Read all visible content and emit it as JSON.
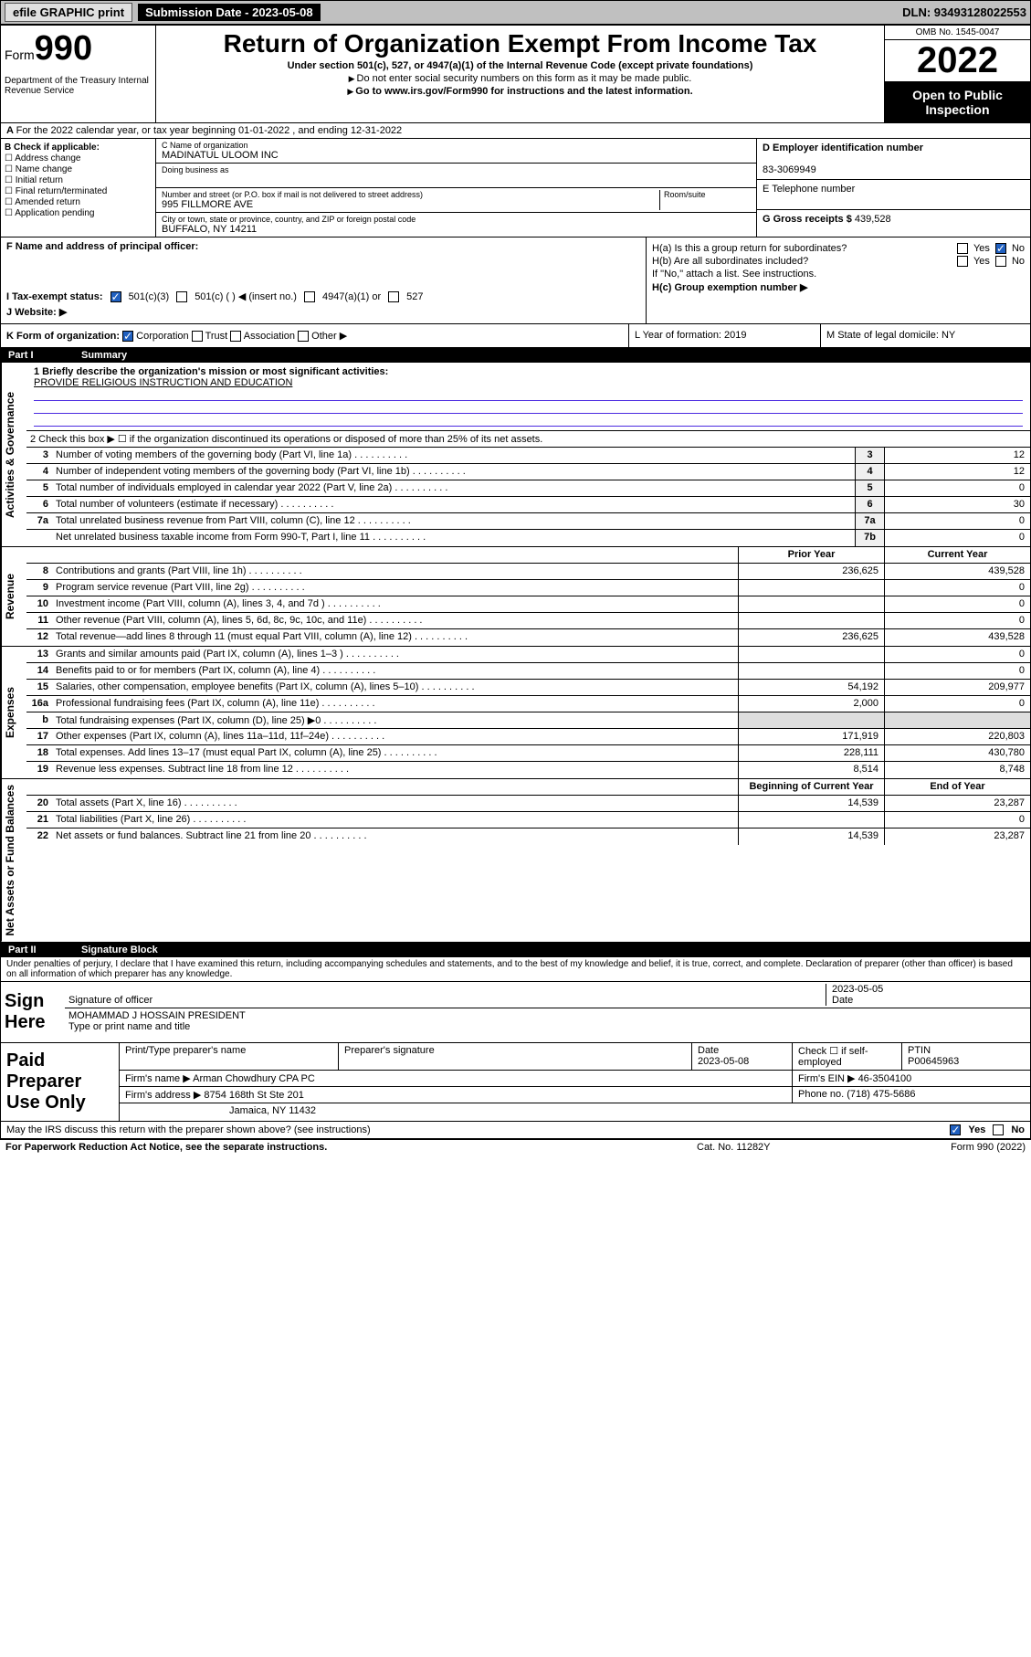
{
  "topbar": {
    "efile": "efile GRAPHIC print",
    "submission_label": "Submission Date - 2023-05-08",
    "dln": "DLN: 93493128022553"
  },
  "header": {
    "form_word": "Form",
    "form_num": "990",
    "dept": "Department of the Treasury\nInternal Revenue Service",
    "title": "Return of Organization Exempt From Income Tax",
    "subtitle1": "Under section 501(c), 527, or 4947(a)(1) of the Internal Revenue Code (except private foundations)",
    "subtitle2": "Do not enter social security numbers on this form as it may be made public.",
    "subtitle3": "Go to www.irs.gov/Form990 for instructions and the latest information.",
    "omb": "OMB No. 1545-0047",
    "year": "2022",
    "inspection": "Open to Public Inspection"
  },
  "row_a": "For the 2022 calendar year, or tax year beginning 01-01-2022   , and ending 12-31-2022",
  "col_b": {
    "title": "B Check if applicable:",
    "opts": [
      "Address change",
      "Name change",
      "Initial return",
      "Final return/terminated",
      "Amended return",
      "Application pending"
    ]
  },
  "c": {
    "name_lbl": "C Name of organization",
    "name": "MADINATUL ULOOM INC",
    "dba_lbl": "Doing business as",
    "addr_lbl": "Number and street (or P.O. box if mail is not delivered to street address)",
    "room_lbl": "Room/suite",
    "addr": "995 FILLMORE AVE",
    "city_lbl": "City or town, state or province, country, and ZIP or foreign postal code",
    "city": "BUFFALO, NY  14211"
  },
  "d": {
    "lbl": "D Employer identification number",
    "val": "83-3069949"
  },
  "e": {
    "lbl": "E Telephone number",
    "val": ""
  },
  "g": {
    "lbl": "G Gross receipts $",
    "val": "439,528"
  },
  "f": {
    "lbl": "F  Name and address of principal officer:",
    "val": ""
  },
  "h": {
    "a": "H(a)  Is this a group return for subordinates?",
    "b": "H(b)  Are all subordinates included?",
    "b_note": "If \"No,\" attach a list. See instructions.",
    "c": "H(c)  Group exemption number ▶",
    "yes": "Yes",
    "no": "No"
  },
  "i": {
    "lbl": "I  Tax-exempt status:",
    "o1": "501(c)(3)",
    "o2": "501(c) (  ) ◀ (insert no.)",
    "o3": "4947(a)(1) or",
    "o4": "527"
  },
  "j": {
    "lbl": "J  Website: ▶",
    "val": ""
  },
  "k": {
    "lbl": "K Form of organization:",
    "o1": "Corporation",
    "o2": "Trust",
    "o3": "Association",
    "o4": "Other ▶"
  },
  "l": {
    "lbl": "L Year of formation: 2019"
  },
  "m": {
    "lbl": "M State of legal domicile: NY"
  },
  "part1": {
    "num": "Part I",
    "title": "Summary"
  },
  "mission": {
    "q": "1  Briefly describe the organization's mission or most significant activities:",
    "text": "PROVIDE RELIGIOUS INSTRUCTION AND EDUCATION"
  },
  "line2": "2  Check this box ▶ ☐  if the organization discontinued its operations or disposed of more than 25% of its net assets.",
  "tabs": {
    "gov": "Activities & Governance",
    "rev": "Revenue",
    "exp": "Expenses",
    "net": "Net Assets or Fund Balances"
  },
  "govlines": [
    {
      "n": "3",
      "t": "Number of voting members of the governing body (Part VI, line 1a)",
      "b": "3",
      "v": "12"
    },
    {
      "n": "4",
      "t": "Number of independent voting members of the governing body (Part VI, line 1b)",
      "b": "4",
      "v": "12"
    },
    {
      "n": "5",
      "t": "Total number of individuals employed in calendar year 2022 (Part V, line 2a)",
      "b": "5",
      "v": "0"
    },
    {
      "n": "6",
      "t": "Total number of volunteers (estimate if necessary)",
      "b": "6",
      "v": "30"
    },
    {
      "n": "7a",
      "t": "Total unrelated business revenue from Part VIII, column (C), line 12",
      "b": "7a",
      "v": "0"
    },
    {
      "n": "",
      "t": "Net unrelated business taxable income from Form 990-T, Part I, line 11",
      "b": "7b",
      "v": "0"
    }
  ],
  "cols": {
    "prior": "Prior Year",
    "current": "Current Year",
    "boy": "Beginning of Current Year",
    "eoy": "End of Year"
  },
  "revlines": [
    {
      "n": "8",
      "t": "Contributions and grants (Part VIII, line 1h)",
      "p": "236,625",
      "c": "439,528"
    },
    {
      "n": "9",
      "t": "Program service revenue (Part VIII, line 2g)",
      "p": "",
      "c": "0"
    },
    {
      "n": "10",
      "t": "Investment income (Part VIII, column (A), lines 3, 4, and 7d )",
      "p": "",
      "c": "0"
    },
    {
      "n": "11",
      "t": "Other revenue (Part VIII, column (A), lines 5, 6d, 8c, 9c, 10c, and 11e)",
      "p": "",
      "c": "0"
    },
    {
      "n": "12",
      "t": "Total revenue—add lines 8 through 11 (must equal Part VIII, column (A), line 12)",
      "p": "236,625",
      "c": "439,528"
    }
  ],
  "explines": [
    {
      "n": "13",
      "t": "Grants and similar amounts paid (Part IX, column (A), lines 1–3 )",
      "p": "",
      "c": "0"
    },
    {
      "n": "14",
      "t": "Benefits paid to or for members (Part IX, column (A), line 4)",
      "p": "",
      "c": "0"
    },
    {
      "n": "15",
      "t": "Salaries, other compensation, employee benefits (Part IX, column (A), lines 5–10)",
      "p": "54,192",
      "c": "209,977"
    },
    {
      "n": "16a",
      "t": "Professional fundraising fees (Part IX, column (A), line 11e)",
      "p": "2,000",
      "c": "0"
    },
    {
      "n": "b",
      "t": "Total fundraising expenses (Part IX, column (D), line 25) ▶0",
      "p": "",
      "c": "",
      "grey": true
    },
    {
      "n": "17",
      "t": "Other expenses (Part IX, column (A), lines 11a–11d, 11f–24e)",
      "p": "171,919",
      "c": "220,803"
    },
    {
      "n": "18",
      "t": "Total expenses. Add lines 13–17 (must equal Part IX, column (A), line 25)",
      "p": "228,111",
      "c": "430,780"
    },
    {
      "n": "19",
      "t": "Revenue less expenses. Subtract line 18 from line 12",
      "p": "8,514",
      "c": "8,748"
    }
  ],
  "netlines": [
    {
      "n": "20",
      "t": "Total assets (Part X, line 16)",
      "p": "14,539",
      "c": "23,287"
    },
    {
      "n": "21",
      "t": "Total liabilities (Part X, line 26)",
      "p": "",
      "c": "0"
    },
    {
      "n": "22",
      "t": "Net assets or fund balances. Subtract line 21 from line 20",
      "p": "14,539",
      "c": "23,287"
    }
  ],
  "part2": {
    "num": "Part II",
    "title": "Signature Block"
  },
  "sig_text": "Under penalties of perjury, I declare that I have examined this return, including accompanying schedules and statements, and to the best of my knowledge and belief, it is true, correct, and complete. Declaration of preparer (other than officer) is based on all information of which preparer has any knowledge.",
  "sign": {
    "here": "Sign Here",
    "sig_lbl": "Signature of officer",
    "date_lbl": "Date",
    "date": "2023-05-05",
    "name": "MOHAMMAD J HOSSAIN  PRESIDENT",
    "name_lbl": "Type or print name and title"
  },
  "paid": {
    "lbl": "Paid Preparer Use Only",
    "h1": "Print/Type preparer's name",
    "h2": "Preparer's signature",
    "h3": "Date",
    "h3v": "2023-05-08",
    "h4": "Check ☐ if self-employed",
    "h5": "PTIN",
    "h5v": "P00645963",
    "firm_lbl": "Firm's name   ▶",
    "firm": "Arman Chowdhury CPA PC",
    "ein_lbl": "Firm's EIN ▶",
    "ein": "46-3504100",
    "addr_lbl": "Firm's address ▶",
    "addr1": "8754 168th St Ste 201",
    "addr2": "Jamaica, NY  11432",
    "phone_lbl": "Phone no.",
    "phone": "(718) 475-5686"
  },
  "discuss": {
    "q": "May the IRS discuss this return with the preparer shown above? (see instructions)",
    "yes": "Yes",
    "no": "No"
  },
  "footer": {
    "pra": "For Paperwork Reduction Act Notice, see the separate instructions.",
    "cat": "Cat. No. 11282Y",
    "form": "Form 990 (2022)"
  }
}
